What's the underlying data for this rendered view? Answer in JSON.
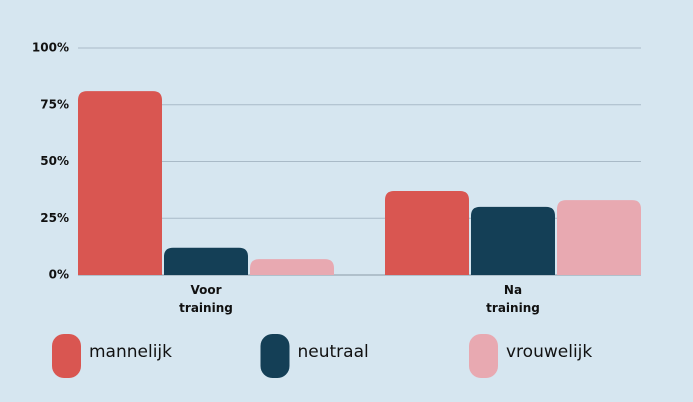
{
  "chart_data": {
    "type": "bar",
    "categories": [
      "Voor training",
      "Na training"
    ],
    "series": [
      {
        "name": "mannelijk",
        "color": "#d95651",
        "values": [
          81,
          37
        ]
      },
      {
        "name": "neutraal",
        "color": "#143f56",
        "values": [
          12,
          30
        ]
      },
      {
        "name": "vrouwelijk",
        "color": "#e8a9b1",
        "values": [
          7,
          33
        ]
      }
    ],
    "ylim": [
      0,
      100
    ],
    "yticks": [
      {
        "value": 0,
        "label": "0%"
      },
      {
        "value": 25,
        "label": "25%"
      },
      {
        "value": 50,
        "label": "50%"
      },
      {
        "value": 75,
        "label": "75%"
      },
      {
        "value": 100,
        "label": "100%"
      }
    ],
    "grid": true,
    "legend": "bottom"
  }
}
